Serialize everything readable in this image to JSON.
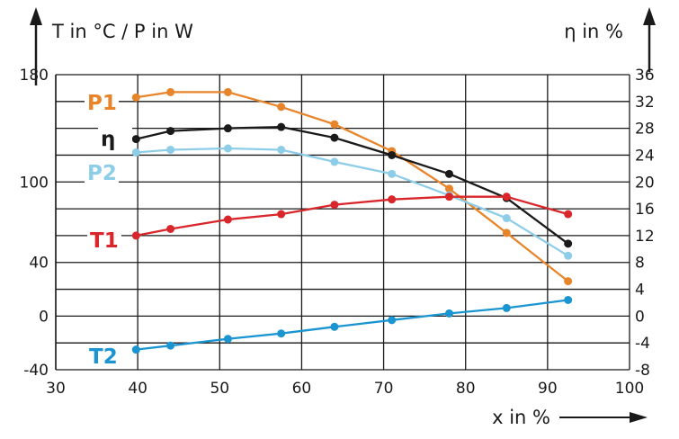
{
  "chart_data": {
    "type": "line",
    "left_axis_title": "T in °C / P in W",
    "right_axis_title": "η in %",
    "x_axis_title": "x in %",
    "x_range": [
      30,
      100
    ],
    "x_ticks": [
      "30",
      "40",
      "50",
      "60",
      "70",
      "80",
      "90",
      "100"
    ],
    "y_left_range": [
      -40,
      180
    ],
    "y_left_tick_labels": [
      "180",
      "100",
      "40",
      "0",
      "-40"
    ],
    "y_left_tick_values": [
      180,
      100,
      40,
      0,
      -40
    ],
    "y_right_range": [
      -8,
      36
    ],
    "y_right_ticks": [
      "36",
      "32",
      "28",
      "24",
      "20",
      "16",
      "12",
      "8",
      "4",
      "0",
      "-4",
      "-8"
    ],
    "grid": true,
    "series": [
      {
        "name": "P1",
        "axis": "left",
        "color": "#e8842a",
        "label_color": "#e8842a",
        "x": [
          39.8,
          44,
          51,
          57.5,
          64,
          71,
          78,
          85,
          92.5
        ],
        "y": [
          163,
          167,
          167,
          156,
          143,
          123,
          95,
          62,
          26
        ]
      },
      {
        "name": "η",
        "axis": "right",
        "color": "#1a1a1a",
        "label_color": "#1a1a1a",
        "x": [
          39.8,
          44,
          51,
          57.5,
          64,
          71,
          78,
          85,
          92.5
        ],
        "y": [
          26.4,
          27.6,
          28.0,
          28.2,
          26.6,
          24.0,
          21.2,
          17.6,
          10.8
        ]
      },
      {
        "name": "P2",
        "axis": "left",
        "color": "#8ecde8",
        "label_color": "#8ecde8",
        "x": [
          39.8,
          44,
          51,
          57.5,
          64,
          71,
          78,
          85,
          92.5
        ],
        "y": [
          122,
          124,
          125,
          124,
          115,
          106,
          90,
          73,
          45
        ]
      },
      {
        "name": "T1",
        "axis": "left",
        "color": "#d9262b",
        "label_color": "#d9262b",
        "x": [
          39.8,
          44,
          51,
          57.5,
          64,
          71,
          78,
          85,
          92.5
        ],
        "y": [
          60,
          65,
          72,
          76,
          83,
          87,
          89,
          89,
          76
        ]
      },
      {
        "name": "T2",
        "axis": "left",
        "color": "#1a95d2",
        "label_color": "#1a95d2",
        "x": [
          39.8,
          44,
          51,
          57.5,
          64,
          71,
          78,
          85,
          92.5
        ],
        "y": [
          -25,
          -22,
          -17,
          -13,
          -8,
          -3,
          2,
          6,
          12
        ]
      }
    ]
  }
}
